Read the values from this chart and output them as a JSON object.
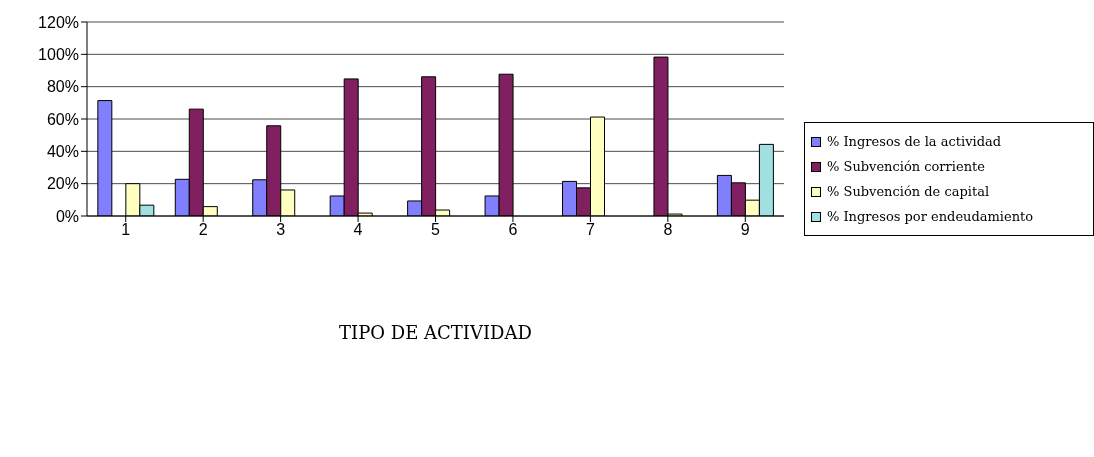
{
  "chart_data": {
    "type": "bar",
    "xlabel": "TIPO DE ACTIVIDAD",
    "categories": [
      "1",
      "2",
      "3",
      "4",
      "5",
      "6",
      "7",
      "8",
      "9"
    ],
    "series": [
      {
        "name": "% Ingresos de la actividad",
        "color": "#8080ff",
        "values": [
          71.4,
          22.7,
          22.4,
          12.4,
          9.3,
          12.4,
          21.4,
          null,
          25.1
        ]
      },
      {
        "name": "% Subvención corriente",
        "color": "#802060",
        "values": [
          null,
          66.1,
          55.8,
          84.8,
          86.1,
          87.7,
          17.4,
          98.3,
          20.5
        ]
      },
      {
        "name": "% Subvención de capital",
        "color": "#ffffc0",
        "values": [
          20,
          5.8,
          16.1,
          1.8,
          3.7,
          0,
          61.2,
          1.2,
          9.8
        ]
      },
      {
        "name": "% Ingresos por endeudamiento",
        "color": "#a0e0e0",
        "values": [
          6.7,
          0,
          0,
          0,
          0,
          0,
          0,
          0,
          44.3
        ]
      }
    ],
    "ylim": [
      0,
      120
    ],
    "yticks": [
      {
        "value": 0,
        "label": "0%"
      },
      {
        "value": 20,
        "label": "20%"
      },
      {
        "value": 40,
        "label": "40%"
      },
      {
        "value": 60,
        "label": "60%"
      },
      {
        "value": 80,
        "label": "80%"
      },
      {
        "value": 100,
        "label": "100%"
      },
      {
        "value": 120,
        "label": "120%"
      }
    ],
    "grid": "y",
    "legend": "right"
  }
}
